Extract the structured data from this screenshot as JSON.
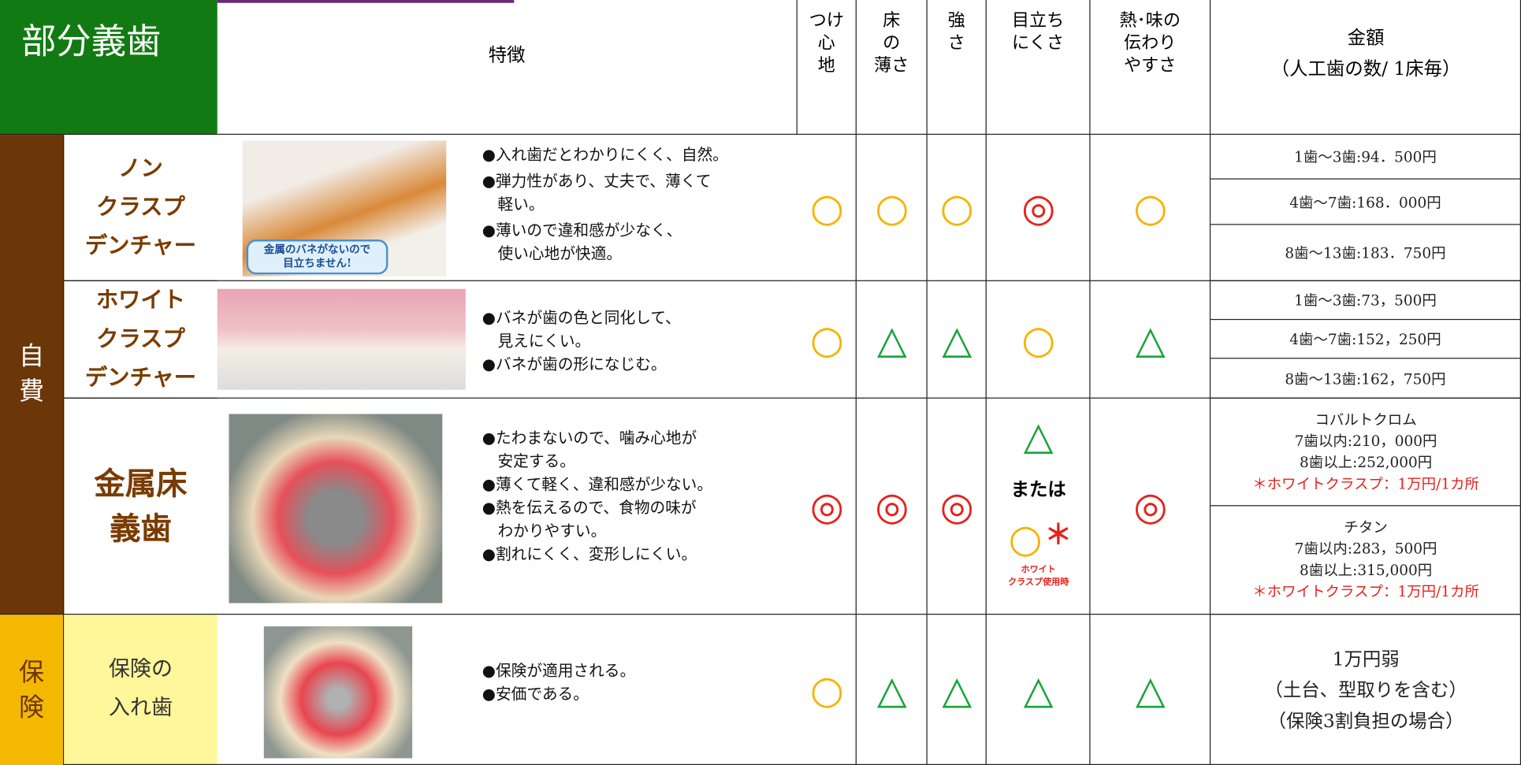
{
  "header": {
    "title": "部分義歯",
    "features": "特徴",
    "criteria": [
      "つけ\n心\n地",
      "床\nの\n薄さ",
      "強\nさ",
      "目立ち\nにくさ",
      "熱･味の\n伝わり\nやすさ"
    ],
    "price": "金額",
    "price_note": "（人工歯の数/ 1床毎）"
  },
  "groups": [
    {
      "label": "自\n費"
    },
    {
      "label": "保\n険"
    }
  ],
  "rows": [
    {
      "name": "ノン\nクラスプ\nデンチャー",
      "image_caption": "金属のバネがないので\n目立ちません!",
      "features": [
        "●入れ歯だとわかりにくく、自然。",
        "●弾力性があり、丈夫で、薄くて\n軽い。",
        "●薄いので違和感が少なく、\n使い心地が快適。"
      ],
      "ratings": [
        "○",
        "○",
        "○",
        "◎",
        "○"
      ],
      "prices": [
        "1歯～3歯:94．500円",
        "4歯～7歯:168．000円",
        "8歯～13歯:183．750円"
      ]
    },
    {
      "name": "ホワイト\nクラスプ\nデンチャー",
      "features": [
        "●バネが歯の色と同化して、\n見えにくい。",
        "●バネが歯の形になじむ。"
      ],
      "ratings": [
        "○",
        "△",
        "△",
        "○",
        "△"
      ],
      "prices": [
        "1歯～3歯:73，500円",
        "4歯～7歯:152，250円",
        "8歯～13歯:162，750円"
      ]
    },
    {
      "name": "金属床\n義歯",
      "features": [
        "●たわまないので、噛み心地が\n安定する。",
        "●薄くて軽く、違和感が少ない。",
        "●熱を伝えるので、食物の味が\nわかりやすい。",
        "●割れにくく、変形しにくい。"
      ],
      "ratings": [
        "◎",
        "◎",
        "◎",
        "△",
        "◎"
      ],
      "alt": {
        "word": "または",
        "rating": "○",
        "mark": "＊",
        "note": "ホワイト\nクラスプ使用時"
      },
      "price_blocks": [
        {
          "lines": [
            "コバルトクロム",
            "7歯以内:210，000円",
            "8歯以上:252,000円"
          ],
          "note": "＊ホワイトクラスプ：1万円/1カ所"
        },
        {
          "lines": [
            "チタン",
            "7歯以内:283，500円",
            "8歯以上:315,000円"
          ],
          "note": "＊ホワイトクラスプ：1万円/1カ所"
        }
      ]
    },
    {
      "name": "保険の\n入れ歯",
      "features": [
        "●保険が適用される。",
        "●安価である。"
      ],
      "ratings": [
        "○",
        "△",
        "△",
        "△",
        "△"
      ],
      "price_text": "1万円弱\n（土台、型取りを含む）\n（保険3割負担の場合）"
    }
  ]
}
